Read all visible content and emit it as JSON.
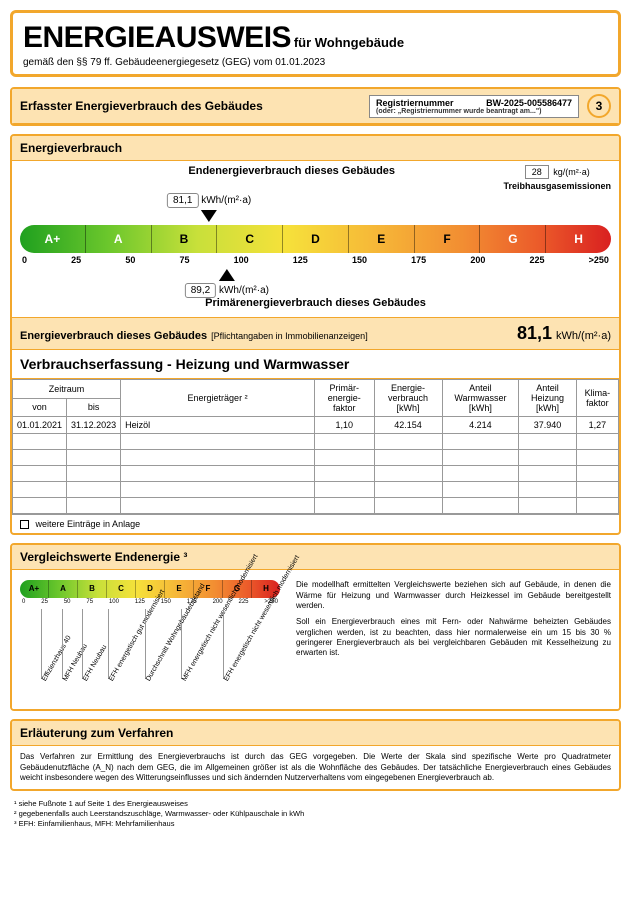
{
  "header": {
    "title": "ENERGIEAUSWEIS",
    "subtitle": "für Wohngebäude",
    "legal_prefix": "gemäß den §§ 79 ff. Gebäudeenergiegesetz (GEG) vom",
    "date": "01.01.2023"
  },
  "registration": {
    "section_title": "Erfasster Energieverbrauch des Gebäudes",
    "reg_label": "Registriernummer",
    "reg_number": "BW-2025-005586477",
    "reg_sub": "(oder: „Registriernummer wurde beantragt am...\")",
    "page": "3"
  },
  "energy": {
    "section_title": "Energieverbrauch",
    "end_title": "Endenergieverbrauch dieses Gebäudes",
    "end_value": "81,1",
    "end_unit": "kWh/(m²·a)",
    "emissions_value": "28",
    "emissions_unit": "kg/(m²·a)",
    "emissions_label": "Treibhausgasemissionen",
    "prim_value": "89,2",
    "prim_unit": "kWh/(m²·a)",
    "prim_title": "Primärenergieverbrauch dieses Gebäudes",
    "scale": {
      "letters": [
        "A+",
        "A",
        "B",
        "C",
        "D",
        "E",
        "F",
        "G",
        "H"
      ],
      "numbers": [
        "0",
        "25",
        "50",
        "75",
        "100",
        "125",
        "150",
        "175",
        "200",
        "225",
        ">250"
      ],
      "gradient": "linear-gradient(to right, #1fa01f 0%, #6cc72c 15%, #c8e03a 30%, #f6e13a 45%, #f6b838 60%, #f28d32 75%, #eb5a2a 88%, #d92020 100%)",
      "letter_colors": [
        "#fff",
        "#fff",
        "#000",
        "#000",
        "#000",
        "#000",
        "#000",
        "#fff",
        "#fff"
      ]
    },
    "pointer_end_pct": 32,
    "pointer_prim_pct": 35
  },
  "value_row": {
    "label": "Energieverbrauch dieses Gebäudes",
    "sub": "[Pflichtangaben in Immobilienanzeigen]",
    "value": "81,1",
    "unit": "kWh/(m²·a)"
  },
  "consumption": {
    "title": "Verbrauchserfassung - Heizung und Warmwasser",
    "headers": {
      "zeitraum": "Zeitraum",
      "von": "von",
      "bis": "bis",
      "traeger": "Energieträger ²",
      "primfaktor": "Primär-\nenergie-\nfaktor",
      "verbrauch": "Energie-\nverbrauch\n[kWh]",
      "warmwasser": "Anteil\nWarmwasser\n[kWh]",
      "heizung": "Anteil\nHeizung\n[kWh]",
      "klima": "Klima-\nfaktor"
    },
    "rows": [
      {
        "von": "01.01.2021",
        "bis": "31.12.2023",
        "traeger": "Heizöl",
        "pf": "1,10",
        "ev": "42.154",
        "ww": "4.214",
        "hz": "37.940",
        "kf": "1,27"
      },
      {
        "von": "",
        "bis": "",
        "traeger": "",
        "pf": "",
        "ev": "",
        "ww": "",
        "hz": "",
        "kf": ""
      },
      {
        "von": "",
        "bis": "",
        "traeger": "",
        "pf": "",
        "ev": "",
        "ww": "",
        "hz": "",
        "kf": ""
      },
      {
        "von": "",
        "bis": "",
        "traeger": "",
        "pf": "",
        "ev": "",
        "ww": "",
        "hz": "",
        "kf": ""
      },
      {
        "von": "",
        "bis": "",
        "traeger": "",
        "pf": "",
        "ev": "",
        "ww": "",
        "hz": "",
        "kf": ""
      },
      {
        "von": "",
        "bis": "",
        "traeger": "",
        "pf": "",
        "ev": "",
        "ww": "",
        "hz": "",
        "kf": ""
      }
    ],
    "checkbox_label": "weitere Einträge in Anlage"
  },
  "vergleich": {
    "title": "Vergleichswerte Endenergie ³",
    "mini_letters": [
      "A+",
      "A",
      "B",
      "C",
      "D",
      "E",
      "F",
      "G",
      "H"
    ],
    "mini_numbers": [
      "0",
      "25",
      "50",
      "75",
      "100",
      "125",
      "150",
      "175",
      "200",
      "225",
      ">250"
    ],
    "mini_gradient": "linear-gradient(to right, #1fa01f 0%, #6cc72c 15%, #c8e03a 30%, #f6e13a 45%, #f6b838 60%, #f28d32 75%, #eb5a2a 88%, #d92020 100%)",
    "labels": [
      {
        "text": "Effizienzhaus 40",
        "pct": 8
      },
      {
        "text": "MFH Neubau",
        "pct": 16
      },
      {
        "text": "EFH Neubau",
        "pct": 24
      },
      {
        "text": "EFH energetisch gut modernisiert",
        "pct": 34
      },
      {
        "text": "Durchschnitt Wohngebäudebestand",
        "pct": 48
      },
      {
        "text": "MFH energetisch nicht wesentlich modernisiert",
        "pct": 62
      },
      {
        "text": "EFH energetisch nicht wesentlich modernisiert",
        "pct": 78
      }
    ],
    "para1": "Die modellhaft ermittelten Vergleichswerte beziehen sich auf Gebäude, in denen die Wärme für Heizung und Warmwasser durch Heizkessel im Gebäude bereitgestellt werden.",
    "para2": "Soll ein Energieverbrauch eines mit Fern- oder Nahwärme beheizten Gebäudes verglichen werden, ist zu beachten, dass hier normalerweise ein um 15 bis 30 % geringerer Energieverbrauch als bei vergleichbaren Gebäuden mit Kesselheizung zu erwarten ist."
  },
  "erl": {
    "title": "Erläuterung zum Verfahren",
    "text": "Das Verfahren zur Ermittlung des Energieverbrauchs ist durch das GEG vorgegeben. Die Werte der Skala sind spezifische Werte pro Quadratmeter Gebäudenutzfläche (A_N) nach dem GEG, die im Allgemeinen größer ist als die Wohnfläche des Gebäudes. Der tatsächliche Energieverbrauch eines Gebäudes weicht insbesondere wegen des Witterungseinflusses und sich ändernden Nutzerverhaltens vom eingegebenen Energieverbrauch ab."
  },
  "footnotes": {
    "f1": "¹ siehe Fußnote 1 auf Seite 1 des Energieausweises",
    "f2": "² gegebenenfalls auch Leerstandszuschläge, Warmwasser- oder Kühlpauschale in kWh",
    "f3": "³ EFH: Einfamilienhaus, MFH: Mehrfamilienhaus"
  }
}
